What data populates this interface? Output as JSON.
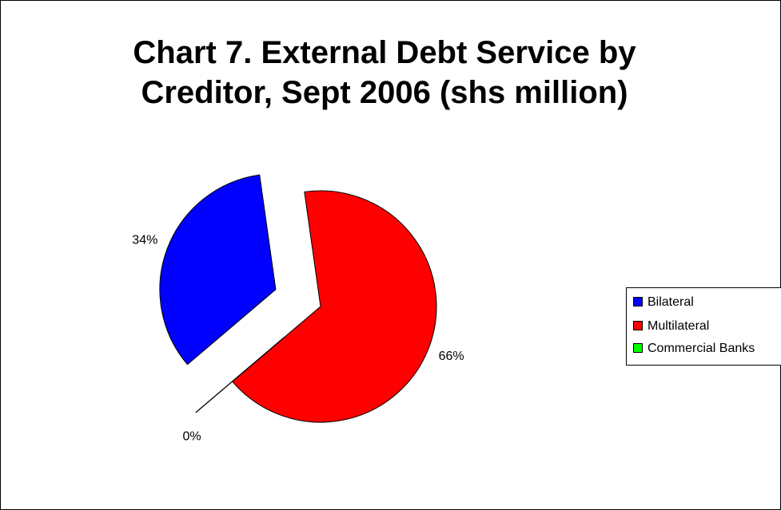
{
  "chart_data": {
    "type": "pie",
    "title": "Chart 7. External Debt Service by Creditor, Sept 2006 (shs million)",
    "title_lines": [
      "Chart 7. External Debt Service by",
      "Creditor, Sept 2006 (shs million)"
    ],
    "slices": [
      {
        "name": "Bilateral",
        "value": 34,
        "label": "34%",
        "color": "#0000ff",
        "exploded": true
      },
      {
        "name": "Multilateral",
        "value": 66,
        "label": "66%",
        "color": "#ff0000",
        "exploded": false
      },
      {
        "name": "Commercial Banks",
        "value": 0,
        "label": "0%",
        "color": "#00ff00",
        "exploded": true
      }
    ],
    "legend_position": "right"
  }
}
